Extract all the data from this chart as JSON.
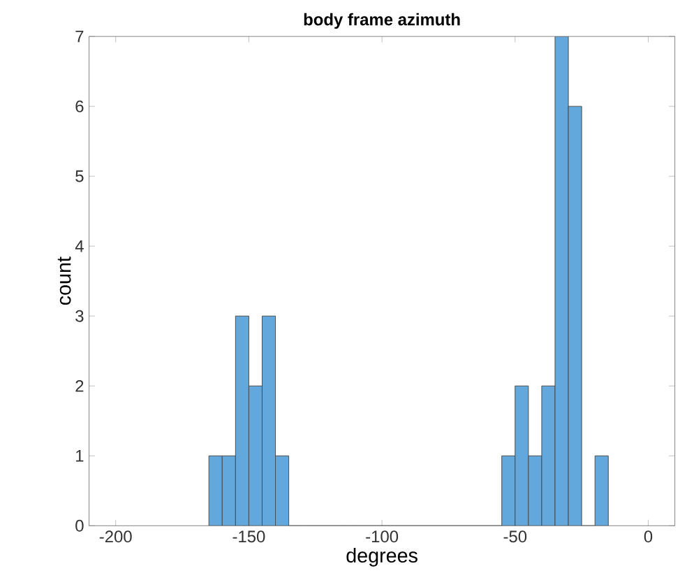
{
  "chart_data": {
    "type": "histogram",
    "title": "body frame azimuth",
    "xlabel": "degrees",
    "ylabel": "count",
    "bins": [
      -165,
      -160,
      -155,
      -150,
      -145,
      -140,
      -135,
      -130,
      -125,
      -120,
      -115,
      -110,
      -105,
      -100,
      -95,
      -90,
      -85,
      -80,
      -75,
      -70,
      -65,
      -60,
      -55,
      -50,
      -45,
      -40,
      -35,
      -30,
      -25,
      -20,
      -15
    ],
    "values": [
      1,
      1,
      3,
      2,
      3,
      1,
      0,
      0,
      0,
      0,
      0,
      0,
      0,
      0,
      0,
      0,
      0,
      0,
      0,
      0,
      0,
      0,
      1,
      2,
      1,
      2,
      7,
      6,
      0,
      1
    ],
    "color": "#62a8dc",
    "xlim": [
      -210,
      10
    ],
    "ylim": [
      0,
      7
    ],
    "xticks": [
      -200,
      -150,
      -100,
      -50,
      0
    ],
    "yticks": [
      0,
      1,
      2,
      3,
      4,
      5,
      6,
      7
    ]
  }
}
